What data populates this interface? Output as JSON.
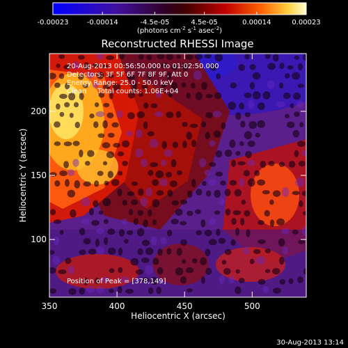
{
  "colors": {
    "background": "#000000",
    "text": "#ffffff"
  },
  "colorbar": {
    "tick_labels": [
      "-0.00023",
      "-0.00014",
      "-4.5e-05",
      "4.5e-05",
      "0.00014",
      "0.00023"
    ],
    "tick_values": [
      -0.00023,
      -0.00014,
      -4.5e-05,
      4.5e-05,
      0.00014,
      0.00023
    ],
    "range": [
      -0.00023,
      0.00023
    ],
    "units_prefix": "(photons cm",
    "units_exp1": "-2",
    "units_mid": " s",
    "units_exp2": "-1",
    "units_mid2": " asec",
    "units_exp3": "-2",
    "units_suffix": ")"
  },
  "chart_data": {
    "type": "heatmap",
    "title": "Reconstructed RHESSI Image",
    "xlabel": "Heliocentric X (arcsec)",
    "ylabel": "Heliocentric Y (arcsec)",
    "xlim": [
      350,
      540
    ],
    "ylim": [
      55,
      245
    ],
    "x_ticks": [
      350,
      400,
      450,
      500
    ],
    "y_ticks": [
      100,
      150,
      200
    ],
    "x_tick_labels": [
      "350",
      "400",
      "450",
      "500"
    ],
    "y_tick_labels": [
      "100",
      "150",
      "200"
    ],
    "peak": [
      378,
      149
    ],
    "annotations": [
      "20-Aug-2013 00:56:50.000 to 01:02:50.000",
      "Detectors: 3F 5F 6F 7F 8F 9F, Att 0",
      "Energy Range: 25.0 - 50.0 keV",
      "Clean     Total counts: 1.06E+04"
    ],
    "peak_label": "Position of Peak = [378,149]"
  },
  "footer": {
    "timestamp": "30-Aug-2013 13:14"
  }
}
